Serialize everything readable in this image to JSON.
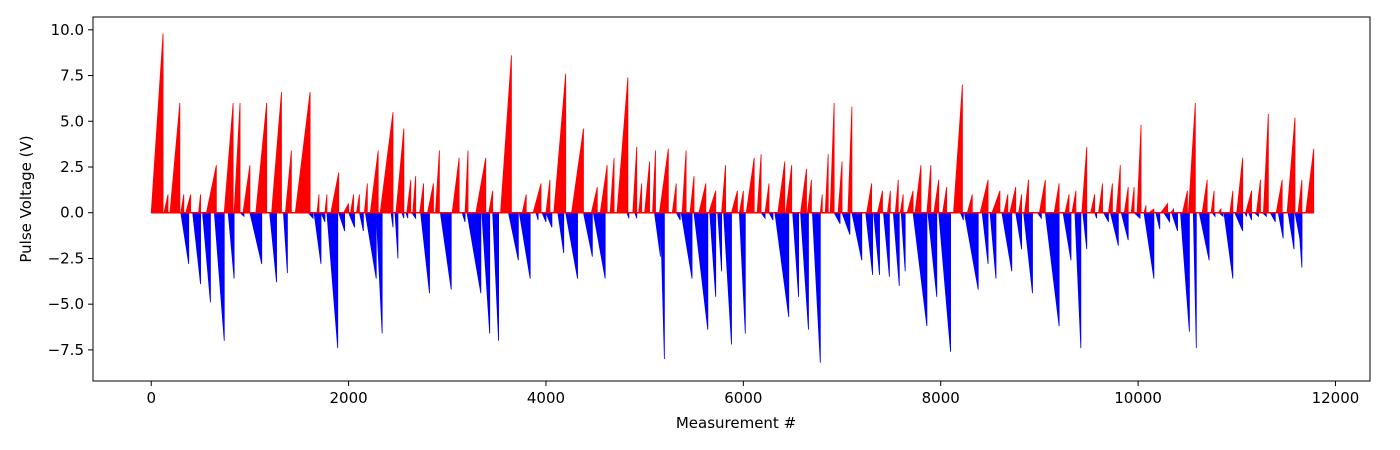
{
  "chart_data": {
    "type": "bar",
    "xlabel": "Measurement #",
    "ylabel": "Pulse Voltage (V)",
    "xlim": [
      -590,
      12350
    ],
    "ylim": [
      -9.2,
      10.7
    ],
    "x_ticks": [
      0,
      2000,
      4000,
      6000,
      8000,
      10000,
      12000
    ],
    "y_ticks": [
      -7.5,
      -5.0,
      -2.5,
      0.0,
      2.5,
      5.0,
      7.5,
      10.0
    ],
    "x_tick_labels": [
      "0",
      "2000",
      "4000",
      "6000",
      "8000",
      "10000",
      "12000"
    ],
    "y_tick_labels": [
      "−7.5",
      "−5.0",
      "−2.5",
      "0.0",
      "2.5",
      "5.0",
      "7.5",
      "10.0"
    ],
    "grid": false,
    "colors": {
      "positive": "#ff0000",
      "negative": "#0000ff",
      "axis": "#000000"
    },
    "series": [
      {
        "polarity": "positive",
        "color": "#ff0000",
        "ramps": [
          [
            0,
            120,
            9.8
          ],
          [
            130,
            170,
            1.0
          ],
          [
            190,
            290,
            6.0
          ],
          [
            300,
            330,
            1.0
          ],
          [
            350,
            400,
            1.0
          ],
          [
            480,
            500,
            1.0
          ],
          [
            560,
            660,
            2.6
          ],
          [
            740,
            830,
            6.0
          ],
          [
            840,
            900,
            6.0
          ],
          [
            930,
            1000,
            2.6
          ],
          [
            1060,
            1170,
            6.0
          ],
          [
            1220,
            1320,
            6.6
          ],
          [
            1360,
            1420,
            3.4
          ],
          [
            1460,
            1610,
            6.6
          ],
          [
            1680,
            1700,
            1.0
          ],
          [
            1760,
            1780,
            1.0
          ],
          [
            1820,
            1900,
            2.2
          ],
          [
            1950,
            2000,
            0.5
          ],
          [
            2020,
            2050,
            1.0
          ],
          [
            2080,
            2110,
            1.0
          ],
          [
            2160,
            2190,
            1.6
          ],
          [
            2220,
            2300,
            3.4
          ],
          [
            2320,
            2450,
            5.5
          ],
          [
            2480,
            2560,
            4.6
          ],
          [
            2590,
            2630,
            1.8
          ],
          [
            2650,
            2680,
            2.0
          ],
          [
            2720,
            2760,
            1.6
          ],
          [
            2800,
            2860,
            1.6
          ],
          [
            2880,
            2920,
            3.4
          ],
          [
            3050,
            3120,
            3.0
          ],
          [
            3180,
            3210,
            3.4
          ],
          [
            3290,
            3390,
            3.0
          ],
          [
            3420,
            3460,
            1.2
          ],
          [
            3540,
            3650,
            8.6
          ],
          [
            3760,
            3800,
            1.0
          ],
          [
            3870,
            3950,
            1.6
          ],
          [
            4000,
            4040,
            1.8
          ],
          [
            4080,
            4200,
            7.6
          ],
          [
            4260,
            4380,
            4.6
          ],
          [
            4460,
            4520,
            1.4
          ],
          [
            4550,
            4620,
            2.6
          ],
          [
            4650,
            4690,
            3.0
          ],
          [
            4720,
            4830,
            7.4
          ],
          [
            4880,
            4920,
            3.6
          ],
          [
            4940,
            4970,
            1.6
          ],
          [
            5000,
            5050,
            2.8
          ],
          [
            5080,
            5110,
            3.4
          ],
          [
            5150,
            5240,
            3.5
          ],
          [
            5280,
            5320,
            1.6
          ],
          [
            5380,
            5420,
            3.4
          ],
          [
            5460,
            5500,
            2.0
          ],
          [
            5550,
            5620,
            1.6
          ],
          [
            5650,
            5720,
            1.2
          ],
          [
            5780,
            5820,
            2.6
          ],
          [
            5880,
            5940,
            1.2
          ],
          [
            5960,
            6000,
            1.2
          ],
          [
            6030,
            6110,
            3.0
          ],
          [
            6140,
            6180,
            3.2
          ],
          [
            6220,
            6260,
            1.6
          ],
          [
            6350,
            6420,
            2.8
          ],
          [
            6430,
            6490,
            2.6
          ],
          [
            6580,
            6640,
            2.4
          ],
          [
            6650,
            6690,
            1.8
          ],
          [
            6780,
            6800,
            1.0
          ],
          [
            6830,
            6860,
            3.2
          ],
          [
            6880,
            6920,
            6.0
          ],
          [
            6960,
            7000,
            2.8
          ],
          [
            7060,
            7100,
            5.8
          ],
          [
            7250,
            7300,
            1.6
          ],
          [
            7360,
            7410,
            1.2
          ],
          [
            7460,
            7490,
            1.2
          ],
          [
            7540,
            7570,
            1.8
          ],
          [
            7590,
            7620,
            1.0
          ],
          [
            7660,
            7720,
            1.2
          ],
          [
            7740,
            7800,
            2.6
          ],
          [
            7860,
            7900,
            2.6
          ],
          [
            7930,
            7980,
            1.8
          ],
          [
            8020,
            8060,
            1.4
          ],
          [
            8130,
            8220,
            7.0
          ],
          [
            8270,
            8320,
            1.0
          ],
          [
            8400,
            8480,
            1.8
          ],
          [
            8520,
            8600,
            1.2
          ],
          [
            8640,
            8680,
            1.0
          ],
          [
            8700,
            8760,
            1.4
          ],
          [
            8790,
            8820,
            1.0
          ],
          [
            8850,
            8890,
            1.8
          ],
          [
            9000,
            9060,
            1.8
          ],
          [
            9150,
            9200,
            1.6
          ],
          [
            9260,
            9300,
            1.0
          ],
          [
            9330,
            9370,
            1.2
          ],
          [
            9430,
            9480,
            3.6
          ],
          [
            9520,
            9560,
            1.0
          ],
          [
            9600,
            9640,
            1.6
          ],
          [
            9700,
            9740,
            1.6
          ],
          [
            9780,
            9820,
            2.6
          ],
          [
            9860,
            9900,
            1.4
          ],
          [
            9930,
            9960,
            1.4
          ],
          [
            9990,
            10030,
            4.8
          ],
          [
            10060,
            10080,
            0.4
          ],
          [
            10110,
            10160,
            0.2
          ],
          [
            10230,
            10300,
            0.5
          ],
          [
            10330,
            10360,
            0.2
          ],
          [
            10450,
            10500,
            1.2
          ],
          [
            10510,
            10580,
            6.0
          ],
          [
            10650,
            10700,
            1.8
          ],
          [
            10740,
            10770,
            1.2
          ],
          [
            10810,
            10840,
            0.2
          ],
          [
            10930,
            10960,
            1.2
          ],
          [
            11000,
            11060,
            3.0
          ],
          [
            11090,
            11150,
            1.2
          ],
          [
            11200,
            11240,
            1.8
          ],
          [
            11270,
            11320,
            5.4
          ],
          [
            11400,
            11460,
            1.8
          ],
          [
            11510,
            11590,
            5.2
          ],
          [
            11620,
            11660,
            1.8
          ],
          [
            11700,
            11780,
            3.5
          ]
        ]
      },
      {
        "polarity": "negative",
        "color": "#0000ff",
        "ramps": [
          [
            300,
            380,
            -2.8
          ],
          [
            420,
            500,
            -3.9
          ],
          [
            520,
            600,
            -4.9
          ],
          [
            640,
            740,
            -7.0
          ],
          [
            780,
            840,
            -3.6
          ],
          [
            900,
            940,
            -0.2
          ],
          [
            1000,
            1120,
            -2.8
          ],
          [
            1200,
            1270,
            -3.8
          ],
          [
            1340,
            1380,
            -3.3
          ],
          [
            1590,
            1640,
            -0.3
          ],
          [
            1650,
            1720,
            -2.8
          ],
          [
            1720,
            1760,
            -0.5
          ],
          [
            1780,
            1890,
            -7.4
          ],
          [
            1900,
            1960,
            -1.0
          ],
          [
            2000,
            2060,
            -0.8
          ],
          [
            2110,
            2150,
            -1.0
          ],
          [
            2170,
            2280,
            -3.6
          ],
          [
            2280,
            2340,
            -6.6
          ],
          [
            2430,
            2450,
            -0.8
          ],
          [
            2470,
            2500,
            -2.5
          ],
          [
            2540,
            2560,
            -0.3
          ],
          [
            2580,
            2600,
            -0.3
          ],
          [
            2640,
            2680,
            -0.3
          ],
          [
            2730,
            2820,
            -4.4
          ],
          [
            2930,
            3040,
            -4.2
          ],
          [
            3150,
            3180,
            -0.5
          ],
          [
            3200,
            3340,
            -4.4
          ],
          [
            3350,
            3430,
            -6.6
          ],
          [
            3460,
            3520,
            -7.0
          ],
          [
            3620,
            3720,
            -2.6
          ],
          [
            3730,
            3840,
            -3.6
          ],
          [
            3900,
            3920,
            -0.4
          ],
          [
            3960,
            4000,
            -0.5
          ],
          [
            4000,
            4060,
            -0.8
          ],
          [
            4120,
            4180,
            -2.2
          ],
          [
            4200,
            4320,
            -3.6
          ],
          [
            4380,
            4470,
            -2.4
          ],
          [
            4480,
            4600,
            -3.6
          ],
          [
            4820,
            4840,
            -0.3
          ],
          [
            4900,
            4920,
            -0.3
          ],
          [
            5100,
            5160,
            -2.4
          ],
          [
            5160,
            5200,
            -8.0
          ],
          [
            5320,
            5360,
            -0.4
          ],
          [
            5370,
            5480,
            -3.6
          ],
          [
            5500,
            5640,
            -6.4
          ],
          [
            5660,
            5720,
            -4.6
          ],
          [
            5740,
            5780,
            -3.2
          ],
          [
            5800,
            5880,
            -7.2
          ],
          [
            5960,
            6020,
            -6.6
          ],
          [
            6180,
            6220,
            -0.3
          ],
          [
            6260,
            6300,
            -0.4
          ],
          [
            6320,
            6460,
            -5.7
          ],
          [
            6500,
            6560,
            -4.6
          ],
          [
            6580,
            6660,
            -6.4
          ],
          [
            6700,
            6780,
            -8.2
          ],
          [
            6920,
            6980,
            -0.6
          ],
          [
            7000,
            7080,
            -1.2
          ],
          [
            7100,
            7200,
            -2.6
          ],
          [
            7240,
            7310,
            -3.4
          ],
          [
            7320,
            7380,
            -3.4
          ],
          [
            7420,
            7480,
            -3.5
          ],
          [
            7520,
            7580,
            -4.0
          ],
          [
            7600,
            7640,
            -3.2
          ],
          [
            7720,
            7860,
            -6.2
          ],
          [
            7870,
            7960,
            -4.6
          ],
          [
            7980,
            8100,
            -7.6
          ],
          [
            8200,
            8230,
            -0.4
          ],
          [
            8240,
            8380,
            -4.2
          ],
          [
            8420,
            8480,
            -2.8
          ],
          [
            8500,
            8560,
            -3.6
          ],
          [
            8620,
            8720,
            -3.2
          ],
          [
            8760,
            8820,
            -2.0
          ],
          [
            8840,
            8930,
            -4.4
          ],
          [
            8980,
            9020,
            -0.3
          ],
          [
            9060,
            9200,
            -6.2
          ],
          [
            9240,
            9320,
            -2.6
          ],
          [
            9360,
            9420,
            -7.4
          ],
          [
            9440,
            9480,
            -2.0
          ],
          [
            9560,
            9580,
            -0.3
          ],
          [
            9650,
            9700,
            -0.5
          ],
          [
            9720,
            9800,
            -1.8
          ],
          [
            9830,
            9900,
            -1.5
          ],
          [
            9960,
            10020,
            -0.3
          ],
          [
            10060,
            10160,
            -3.6
          ],
          [
            10180,
            10220,
            -0.9
          ],
          [
            10260,
            10320,
            -0.5
          ],
          [
            10340,
            10400,
            -1.0
          ],
          [
            10430,
            10520,
            -6.5
          ],
          [
            10560,
            10590,
            -7.4
          ],
          [
            10620,
            10720,
            -2.6
          ],
          [
            10750,
            10780,
            -0.2
          ],
          [
            10820,
            10860,
            -0.2
          ],
          [
            10870,
            10960,
            -3.6
          ],
          [
            10980,
            11060,
            -1.0
          ],
          [
            11080,
            11100,
            -0.2
          ],
          [
            11120,
            11150,
            -0.4
          ],
          [
            11180,
            11220,
            -0.2
          ],
          [
            11260,
            11300,
            -0.2
          ],
          [
            11340,
            11390,
            -0.5
          ],
          [
            11420,
            11470,
            -1.4
          ],
          [
            11520,
            11580,
            -2.0
          ],
          [
            11590,
            11660,
            -2.0
          ],
          [
            11620,
            11660,
            -3.0
          ]
        ]
      }
    ]
  }
}
